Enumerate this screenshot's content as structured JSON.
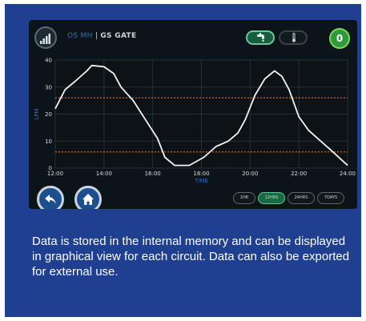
{
  "device": {
    "name": "OS MH",
    "separator": " | ",
    "gate": "GS GATE"
  },
  "counter": "0",
  "icons": {
    "signal": "signal-strength-icon",
    "water": "faucet-icon",
    "temp": "thermometer-icon",
    "back": "back-arrow-icon",
    "home": "home-icon"
  },
  "ranges": [
    {
      "label": "1HR",
      "active": false
    },
    {
      "label": "12HRS",
      "active": true
    },
    {
      "label": "24HRS",
      "active": false
    },
    {
      "label": "7DAYS",
      "active": false
    }
  ],
  "chart_data": {
    "type": "line",
    "xlabel": "TIME",
    "ylabel": "LPM",
    "xlim": [
      12,
      24
    ],
    "ylim": [
      0,
      40
    ],
    "x_ticks": [
      "12:00",
      "14:00",
      "16:00",
      "18:00",
      "20:00",
      "22:00",
      "24:00"
    ],
    "y_ticks": [
      "0",
      "10",
      "20",
      "30",
      "40"
    ],
    "thresholds": [
      26,
      6
    ],
    "grid": true,
    "series": [
      {
        "values": [
          [
            12,
            22
          ],
          [
            12.4,
            29
          ],
          [
            12.8,
            32
          ],
          [
            13.3,
            36
          ],
          [
            13.5,
            38
          ],
          [
            14.0,
            37.5
          ],
          [
            14.4,
            35
          ],
          [
            14.7,
            30
          ],
          [
            15.2,
            25
          ],
          [
            15.7,
            18
          ],
          [
            16.2,
            11
          ],
          [
            16.5,
            4
          ],
          [
            16.9,
            1
          ],
          [
            17.5,
            1
          ],
          [
            18.1,
            4
          ],
          [
            18.6,
            8
          ],
          [
            19.1,
            10
          ],
          [
            19.5,
            13
          ],
          [
            19.8,
            18
          ],
          [
            20.2,
            27
          ],
          [
            20.6,
            33
          ],
          [
            21.0,
            36
          ],
          [
            21.3,
            34
          ],
          [
            21.6,
            29
          ],
          [
            22.0,
            19
          ],
          [
            22.4,
            14
          ],
          [
            22.9,
            10
          ],
          [
            23.4,
            6
          ],
          [
            24,
            1
          ]
        ]
      }
    ]
  },
  "description": "Data is stored in the internal memory and can be displayed in graphical view for each circuit. Data can also be exported for external use."
}
